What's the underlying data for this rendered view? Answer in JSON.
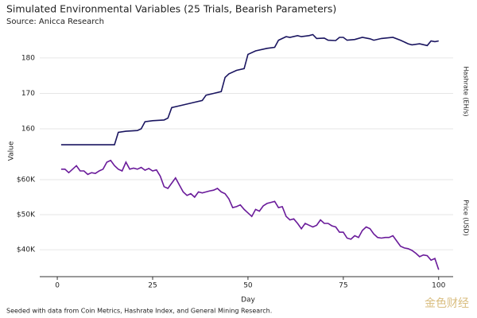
{
  "title": "Simulated Environmental Variables (25 Trials, Bearish Parameters)",
  "subtitle": "Source: Anicca Research",
  "y_label": "Value",
  "x_label": "Day",
  "note": "Seeded with data from Coin Metrics, Hashrate Index, and General Mining Research.",
  "watermark": "金色财经",
  "xlim": [
    -4.6,
    103.8
  ],
  "xticks": [
    0,
    25,
    50,
    75,
    100
  ],
  "chart_data": [
    {
      "type": "line",
      "y_label": "Hashrate (EH/s)",
      "color": "#1a1560",
      "ylim": [
        152.6,
        188.5
      ],
      "yticks": [
        160,
        170,
        180
      ],
      "x": [
        1,
        15,
        16,
        18,
        21,
        22,
        23,
        25,
        28,
        29,
        30,
        32,
        36,
        38,
        39,
        41,
        43,
        44,
        45,
        47,
        49,
        50,
        52,
        55,
        57,
        58,
        60,
        61,
        63,
        64,
        66,
        67,
        68,
        70,
        71,
        73,
        74,
        75,
        76,
        78,
        80,
        82,
        83,
        85,
        88,
        90,
        92,
        93,
        95,
        97,
        98,
        99,
        100
      ],
      "values": [
        155.5,
        155.5,
        159,
        159.3,
        159.5,
        160,
        162,
        162.3,
        162.5,
        163,
        166,
        166.5,
        167.5,
        168,
        169.5,
        170,
        170.5,
        174.5,
        175.5,
        176.5,
        177,
        181,
        182,
        182.7,
        183,
        185,
        186,
        185.8,
        186.3,
        186,
        186.3,
        186.6,
        185.5,
        185.6,
        185,
        184.9,
        185.8,
        185.8,
        185,
        185.2,
        185.8,
        185.4,
        185,
        185.5,
        185.8,
        185,
        184,
        183.7,
        184,
        183.5,
        184.8,
        184.6,
        184.8
      ]
    },
    {
      "type": "line",
      "y_label": "Price (USD)",
      "color": "#6a1b9a",
      "ylim": [
        32300,
        65900
      ],
      "yticks": [
        {
          "value": 40000,
          "label": "$40K"
        },
        {
          "value": 50000,
          "label": "$50K"
        },
        {
          "value": 60000,
          "label": "$60K"
        }
      ],
      "x": [
        1,
        2,
        3,
        4,
        5,
        6,
        7,
        8,
        9,
        10,
        11,
        12,
        13,
        14,
        15,
        16,
        17,
        18,
        19,
        20,
        21,
        22,
        23,
        24,
        25,
        26,
        27,
        28,
        29,
        30,
        31,
        32,
        33,
        34,
        35,
        36,
        37,
        38,
        39,
        40,
        41,
        42,
        43,
        44,
        45,
        46,
        47,
        48,
        49,
        50,
        51,
        52,
        53,
        54,
        55,
        56,
        57,
        58,
        59,
        60,
        61,
        62,
        63,
        64,
        65,
        66,
        67,
        68,
        69,
        70,
        71,
        72,
        73,
        74,
        75,
        76,
        77,
        78,
        79,
        80,
        81,
        82,
        83,
        84,
        85,
        86,
        87,
        88,
        89,
        90,
        91,
        92,
        93,
        94,
        95,
        96,
        97,
        98,
        99,
        100
      ],
      "values": [
        63000,
        63000,
        62000,
        63000,
        64000,
        62500,
        62500,
        61500,
        62000,
        61800,
        62500,
        63000,
        65000,
        65500,
        64000,
        63000,
        62500,
        65000,
        63000,
        63300,
        63000,
        63500,
        62700,
        63200,
        62500,
        62800,
        61000,
        58000,
        57500,
        59000,
        60500,
        58500,
        56500,
        55500,
        56000,
        55000,
        56500,
        56200,
        56500,
        56800,
        57000,
        57500,
        56500,
        56000,
        54500,
        52000,
        52300,
        52800,
        51500,
        50500,
        49500,
        51500,
        51000,
        52500,
        53200,
        53500,
        53800,
        52000,
        52300,
        49500,
        48500,
        48800,
        47500,
        46000,
        47500,
        47000,
        46500,
        47000,
        48500,
        47500,
        47500,
        46800,
        46500,
        45000,
        45000,
        43300,
        43000,
        44000,
        43500,
        45500,
        46500,
        46000,
        44500,
        43500,
        43300,
        43500,
        43500,
        44000,
        42500,
        41000,
        40500,
        40300,
        39800,
        39000,
        38000,
        38500,
        38300,
        37000,
        37500,
        34300
      ]
    }
  ]
}
